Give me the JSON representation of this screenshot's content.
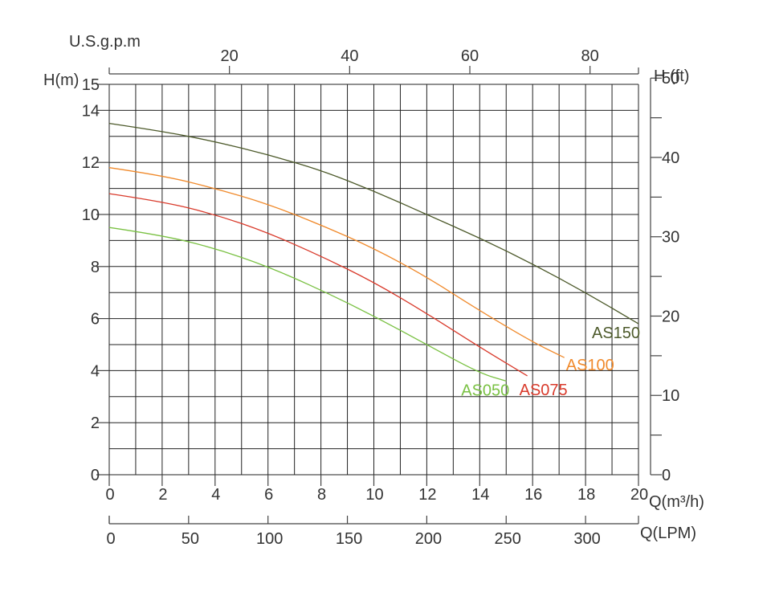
{
  "chart_data": {
    "type": "line",
    "title": "",
    "xlabel": "Q(m³/h)",
    "ylabel": "H(m)",
    "xlim": [
      0,
      20
    ],
    "ylim": [
      0,
      15
    ],
    "x_ticks": [
      0,
      2,
      4,
      6,
      8,
      10,
      12,
      14,
      16,
      18,
      20
    ],
    "y_ticks": [
      0,
      2,
      4,
      6,
      8,
      10,
      12,
      14,
      15
    ],
    "x_grid_step": 1,
    "y_grid_step": 1,
    "top_axis": {
      "label": "U.S.g.p.m",
      "ticks": [
        20,
        40,
        60,
        80
      ],
      "factor_from_m3h": 4.403
    },
    "right_axis": {
      "label": "H (ft)",
      "ticks": [
        0,
        10,
        20,
        30,
        40,
        50
      ],
      "minor_ticks": [
        5,
        15,
        25,
        35,
        45
      ],
      "factor_from_m": 3.281
    },
    "bottom_axis2": {
      "label": "Q(LPM)",
      "ticks": [
        0,
        50,
        100,
        150,
        200,
        250,
        300
      ],
      "factor_from_m3h": 16.667
    },
    "series": [
      {
        "name": "AS050",
        "color": "#7ac143",
        "x": [
          0,
          2,
          4,
          6,
          8,
          10,
          12,
          14,
          15
        ],
        "y": [
          9.5,
          9.2,
          8.7,
          8.0,
          7.1,
          6.1,
          5.0,
          3.9,
          3.6
        ]
      },
      {
        "name": "AS075",
        "color": "#d93a2b",
        "x": [
          0,
          2,
          4,
          6,
          8,
          10,
          12,
          14,
          15.8
        ],
        "y": [
          10.8,
          10.5,
          10.0,
          9.3,
          8.4,
          7.4,
          6.2,
          4.9,
          3.8
        ]
      },
      {
        "name": "AS100",
        "color": "#f08a2c",
        "x": [
          0,
          2,
          4,
          6,
          8,
          10,
          12,
          14,
          16,
          17.2
        ],
        "y": [
          11.8,
          11.5,
          11.0,
          10.4,
          9.6,
          8.7,
          7.6,
          6.3,
          5.1,
          4.5
        ]
      },
      {
        "name": "AS150",
        "color": "#4d5a2b",
        "x": [
          0,
          2,
          4,
          6,
          8,
          10,
          12,
          14,
          16,
          18,
          20
        ],
        "y": [
          13.5,
          13.2,
          12.8,
          12.3,
          11.7,
          10.9,
          10.0,
          9.1,
          8.1,
          7.0,
          5.8
        ]
      }
    ]
  }
}
